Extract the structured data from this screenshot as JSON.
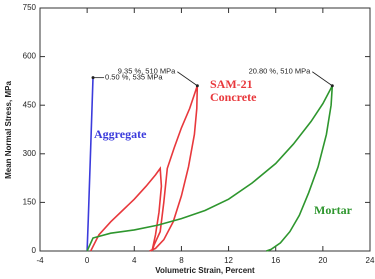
{
  "chart_data": {
    "type": "line",
    "xlabel": "Volumetric Strain, Percent",
    "ylabel": "Mean Normal Stress, MPa",
    "xlim": [
      -4,
      24
    ],
    "xticks": [
      -4,
      0,
      4,
      8,
      12,
      16,
      20,
      24
    ],
    "ylim": [
      0,
      750
    ],
    "yticks": [
      0,
      150,
      300,
      450,
      600,
      750
    ],
    "grid": false,
    "series": [
      {
        "name": "Aggregate",
        "color": "#3b3bdc",
        "x": [
          0,
          0.1,
          0.3,
          0.5
        ],
        "values": [
          0,
          100,
          320,
          535
        ]
      },
      {
        "name": "SAM-21 Concrete",
        "color": "#e8383c",
        "x": [
          0.3,
          1,
          2,
          3,
          4,
          5,
          5.8,
          6.2,
          6.3,
          6.1,
          5.8,
          5.5,
          5.7,
          6.2,
          6.5,
          6.8,
          7.4,
          8,
          8.7,
          9.35,
          9.3,
          9.1,
          8.6,
          8,
          7.3,
          6.5,
          5.8,
          5.3
        ],
        "values": [
          0,
          50,
          90,
          125,
          160,
          200,
          235,
          255,
          200,
          120,
          50,
          0,
          20,
          60,
          150,
          255,
          320,
          380,
          440,
          510,
          440,
          360,
          260,
          170,
          90,
          35,
          8,
          0
        ]
      },
      {
        "name": "Mortar",
        "color": "#2e962e",
        "x": [
          0,
          0.5,
          2,
          4,
          6,
          8,
          10,
          12,
          14,
          16,
          17.5,
          19,
          20,
          20.8,
          20.7,
          20.3,
          19.6,
          18.8,
          18,
          17.2,
          16.4,
          15.6,
          15.2
        ],
        "values": [
          0,
          40,
          55,
          65,
          80,
          100,
          125,
          160,
          210,
          270,
          330,
          400,
          455,
          510,
          450,
          360,
          260,
          180,
          110,
          60,
          25,
          5,
          0
        ]
      }
    ],
    "annotations": [
      {
        "text": "0.50 %,  535 MPa",
        "x": 0.5,
        "y": 535
      },
      {
        "text": "9.35 %,  510 MPa",
        "x": 9.35,
        "y": 510
      },
      {
        "text": "20.80 %, 510 MPa",
        "x": 20.8,
        "y": 510
      }
    ]
  }
}
